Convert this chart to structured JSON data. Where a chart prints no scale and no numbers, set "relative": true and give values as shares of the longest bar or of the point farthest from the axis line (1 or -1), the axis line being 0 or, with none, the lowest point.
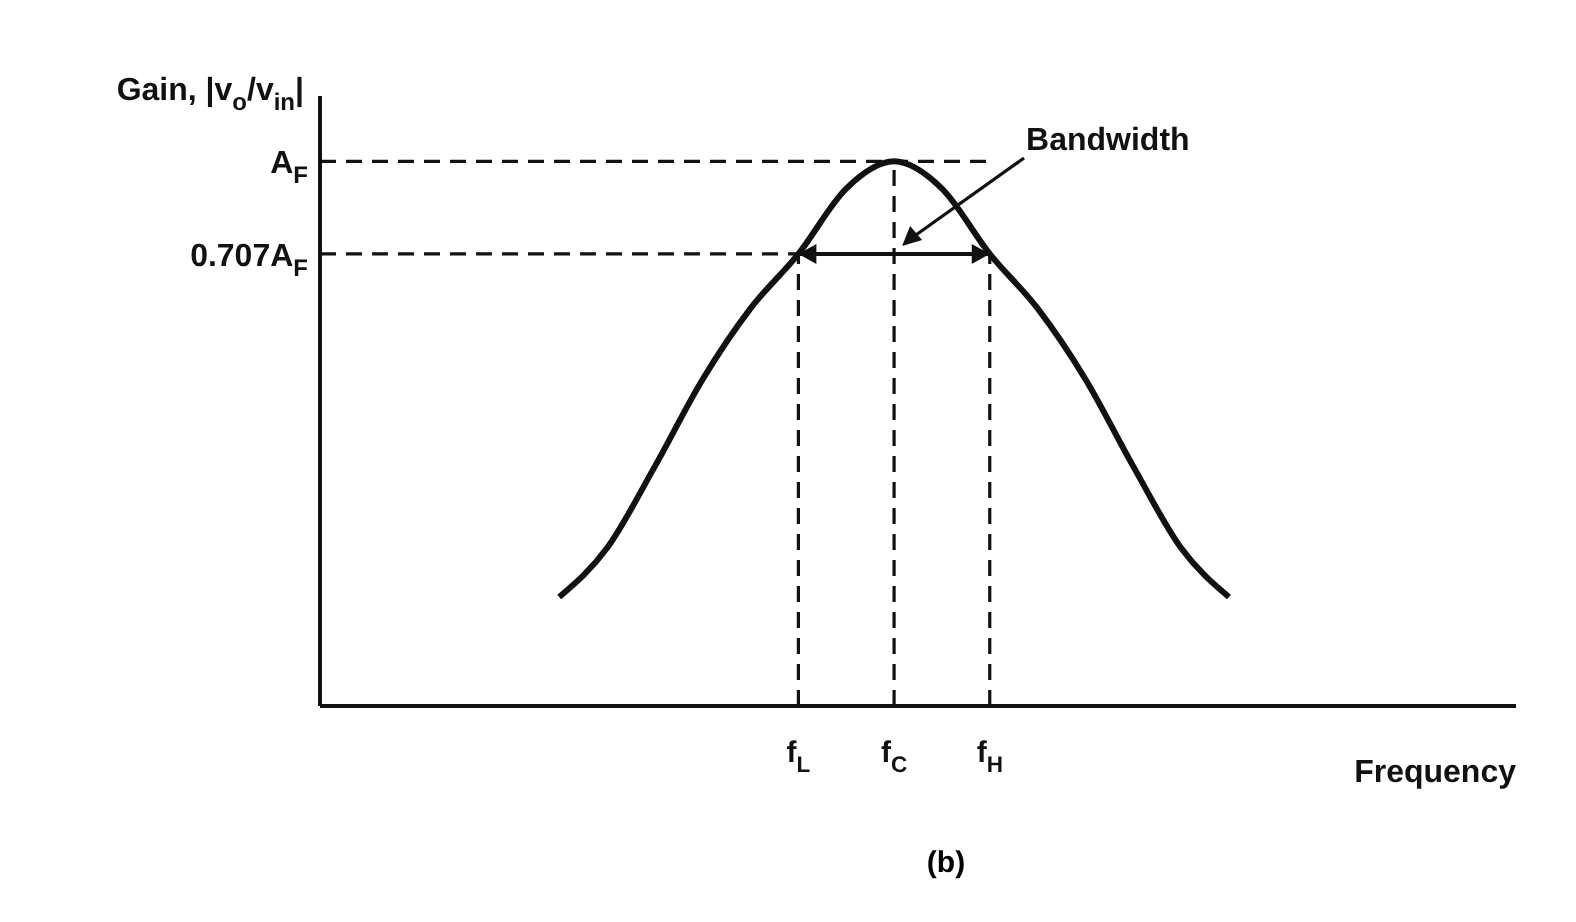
{
  "chart_data": {
    "type": "line",
    "relative": true,
    "xlabel": "Frequency",
    "ylabel": "Gain, |v$_{o}$/v$_{in}$|",
    "categories": [
      null,
      null,
      null,
      null,
      null,
      null,
      null,
      null,
      "f$_{L}$",
      null,
      "f$_{C}$",
      null,
      "f$_{H}$",
      null,
      null,
      null,
      null,
      null,
      null,
      null,
      null,
      null,
      null,
      null
    ],
    "series": [
      {
        "color": "#111111",
        "values": [
          null,
          null,
          null,
          0.2,
          0.29,
          0.44,
          0.6,
          0.73,
          0.83,
          0.95,
          1,
          0.95,
          0.83,
          0.73,
          0.6,
          0.44,
          0.29,
          0.2,
          null,
          null,
          null,
          null,
          null,
          null
        ]
      }
    ],
    "ref_lines": [
      {
        "axis": "y",
        "value": 1,
        "label": "A$_{F}$",
        "line_style": "dashed",
        "color": "#111111"
      },
      {
        "axis": "y",
        "value": 0.83,
        "label": "0.707A$_{F}$",
        "line_style": "dashed",
        "color": "#111111"
      },
      {
        "axis": "x",
        "value": "f$_{L}$",
        "line_style": "dashed",
        "color": "#111111"
      },
      {
        "axis": "x",
        "value": "f$_{C}$",
        "line_style": "dashed",
        "color": "#111111"
      },
      {
        "axis": "x",
        "value": "f$_{H}$",
        "line_style": "dashed",
        "color": "#111111"
      }
    ],
    "annotations": [
      "Bandwidth",
      "(b)"
    ],
    "grid": false,
    "legend": false,
    "marker": "none",
    "line_style": "solid"
  }
}
